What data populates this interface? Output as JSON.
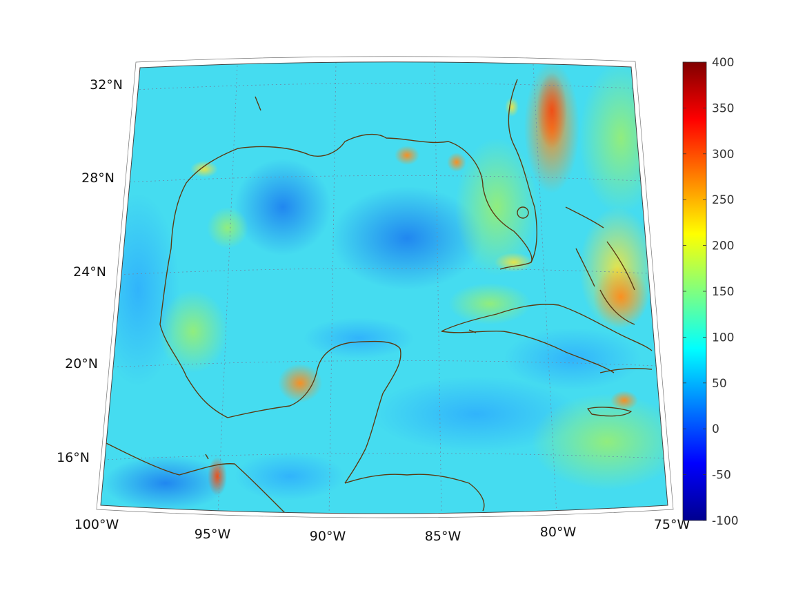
{
  "map": {
    "projection": "conic",
    "lon_range_deg": [
      -100,
      -75
    ],
    "lat_range_deg": [
      14,
      33
    ],
    "lon_ticks": [
      "100°W",
      "95°W",
      "90°W",
      "85°W",
      "80°W",
      "75°W"
    ],
    "lat_ticks": [
      "32°N",
      "28°N",
      "24°N",
      "20°N",
      "16°N"
    ],
    "coastline_color": "#5a3a12",
    "gridline_style": "dotted",
    "colormap": "jet"
  },
  "colorbar": {
    "min": -100,
    "max": 400,
    "tick_labels": [
      "400",
      "350",
      "300",
      "250",
      "200",
      "150",
      "100",
      "50",
      "0",
      "-50",
      "-100"
    ]
  }
}
